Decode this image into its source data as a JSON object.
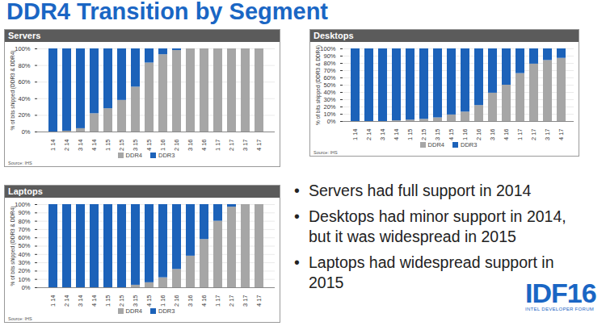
{
  "title": "DDR4 Transition by Segment",
  "bullets": [
    "Servers had full support in 2014",
    "Desktops had minor support in 2014, but it was widespread in 2015",
    "Laptops had widespread support in 2015"
  ],
  "logo": {
    "text": "IDF16",
    "subtitle": "INTEL DEVELOPER FORUM"
  },
  "chart_data": [
    {
      "type": "bar",
      "title": "Servers",
      "ylabel": "% of bits shipped (DDR3 & DDR4)",
      "source": "Source: IHS",
      "categories": [
        "Q1 14",
        "Q2 14",
        "Q3 14",
        "Q4 14",
        "Q1 15",
        "Q2 15",
        "Q3 15",
        "Q4 15",
        "Q1 16",
        "Q2 16",
        "Q3 16",
        "Q4 16",
        "Q1 17",
        "Q2 17",
        "Q3 17",
        "Q4 17"
      ],
      "series": [
        {
          "name": "DDR4",
          "color": "#a6a6a6",
          "values": [
            0,
            1,
            4,
            22,
            28,
            38,
            54,
            83,
            93,
            98,
            100,
            100,
            100,
            100,
            100,
            100
          ]
        },
        {
          "name": "DDR3",
          "color": "#1c62b9",
          "values": [
            100,
            99,
            96,
            78,
            72,
            62,
            46,
            17,
            7,
            2,
            0,
            0,
            0,
            0,
            0,
            0
          ]
        }
      ],
      "stacked": true,
      "ylim": [
        0,
        100
      ],
      "yticks": [
        {
          "value": 0,
          "label": "0%"
        },
        {
          "value": 20,
          "label": "20%"
        },
        {
          "value": 40,
          "label": "40%"
        },
        {
          "value": 60,
          "label": "60%"
        },
        {
          "value": 80,
          "label": "80%"
        },
        {
          "value": 100,
          "label": "100%"
        }
      ],
      "grid": true,
      "legend": "bottom"
    },
    {
      "type": "bar",
      "title": "Desktops",
      "ylabel": "% of bits shipped (DDR3 & DDR4)",
      "source": "Source: IHS",
      "categories": [
        "Q1 14",
        "Q2 14",
        "Q3 14",
        "Q4 14",
        "Q1 15",
        "Q2 15",
        "Q3 15",
        "Q4 15",
        "Q1 16",
        "Q2 16",
        "Q3 16",
        "Q4 16",
        "Q1 17",
        "Q2 17",
        "Q3 17",
        "Q4 17"
      ],
      "series": [
        {
          "name": "DDR4",
          "color": "#a6a6a6",
          "values": [
            0,
            0,
            0,
            1,
            2,
            3,
            5,
            9,
            13,
            22,
            39,
            50,
            66,
            79,
            84,
            87
          ]
        },
        {
          "name": "DDR3",
          "color": "#1c62b9",
          "values": [
            100,
            100,
            100,
            99,
            98,
            97,
            95,
            91,
            87,
            78,
            61,
            50,
            34,
            21,
            16,
            13
          ]
        }
      ],
      "stacked": true,
      "ylim": [
        0,
        100
      ],
      "yticks": [
        {
          "value": 0,
          "label": "0%"
        },
        {
          "value": 10,
          "label": "10%"
        },
        {
          "value": 20,
          "label": "20%"
        },
        {
          "value": 30,
          "label": "30%"
        },
        {
          "value": 40,
          "label": "40%"
        },
        {
          "value": 50,
          "label": "50%"
        },
        {
          "value": 60,
          "label": "60%"
        },
        {
          "value": 70,
          "label": "70%"
        },
        {
          "value": 80,
          "label": "80%"
        },
        {
          "value": 90,
          "label": "90%"
        },
        {
          "value": 100,
          "label": "100%"
        }
      ],
      "grid": true,
      "legend": "bottom"
    },
    {
      "type": "bar",
      "title": "Laptops",
      "ylabel": "% of bits shipped (DDR3 & DDR4)",
      "source": "Source: IHS",
      "categories": [
        "Q1 14",
        "Q2 14",
        "Q3 14",
        "Q4 14",
        "Q1 15",
        "Q2 15",
        "Q3 15",
        "Q4 15",
        "Q1 16",
        "Q2 16",
        "Q3 16",
        "Q4 16",
        "Q1 17",
        "Q2 17",
        "Q3 17",
        "Q4 17"
      ],
      "series": [
        {
          "name": "DDR4",
          "color": "#a6a6a6",
          "values": [
            0,
            0,
            0,
            0,
            0,
            0,
            3,
            6,
            12,
            22,
            38,
            58,
            80,
            97,
            100,
            100
          ]
        },
        {
          "name": "DDR3",
          "color": "#1c62b9",
          "values": [
            100,
            100,
            100,
            100,
            100,
            100,
            97,
            94,
            88,
            78,
            62,
            42,
            20,
            3,
            0,
            0
          ]
        }
      ],
      "stacked": true,
      "ylim": [
        0,
        100
      ],
      "yticks": [
        {
          "value": 0,
          "label": "0%"
        },
        {
          "value": 10,
          "label": "10%"
        },
        {
          "value": 20,
          "label": "20%"
        },
        {
          "value": 30,
          "label": "30%"
        },
        {
          "value": 40,
          "label": "40%"
        },
        {
          "value": 50,
          "label": "50%"
        },
        {
          "value": 60,
          "label": "60%"
        },
        {
          "value": 70,
          "label": "70%"
        },
        {
          "value": 80,
          "label": "80%"
        },
        {
          "value": 90,
          "label": "90%"
        },
        {
          "value": 100,
          "label": "100%"
        }
      ],
      "grid": true,
      "legend": "bottom"
    }
  ]
}
